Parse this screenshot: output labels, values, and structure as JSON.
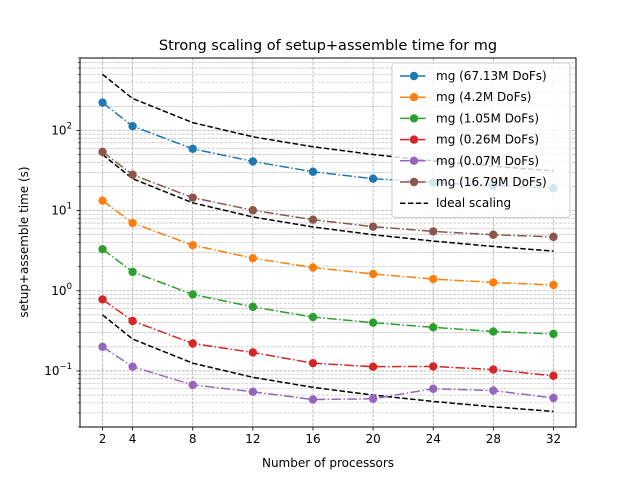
{
  "chart_data": {
    "type": "line",
    "title": "Strong scaling of setup+assemble time for mg",
    "xlabel": "Number of processors",
    "ylabel": "setup+assemble time (s)",
    "x": [
      2,
      4,
      8,
      12,
      16,
      20,
      24,
      28,
      32
    ],
    "x_ticks": [
      2,
      4,
      8,
      12,
      16,
      20,
      24,
      28,
      32
    ],
    "xlim": [
      0.5,
      33.5
    ],
    "y_scale": "log",
    "ylim": [
      0.02,
      800
    ],
    "y_major_ticks": [
      0.1,
      1,
      10,
      100
    ],
    "y_tick_labels": [
      {
        "base": "10",
        "exp": "−1"
      },
      {
        "base": "10",
        "exp": "0"
      },
      {
        "base": "10",
        "exp": "1"
      },
      {
        "base": "10",
        "exp": "2"
      }
    ],
    "grid": "both (major and minor)",
    "legend_position": "top-right",
    "series": [
      {
        "name": "mg (67.13M DoFs)",
        "color": "#1f77b4",
        "style": "dash-dot",
        "marker": "circle",
        "values": [
          222,
          113,
          59,
          41,
          30.5,
          25,
          22.5,
          20.5,
          19
        ]
      },
      {
        "name": "mg (4.2M DoFs)",
        "color": "#ff7f0e",
        "style": "dash-dot",
        "marker": "circle",
        "values": [
          13.3,
          7.0,
          3.7,
          2.55,
          1.95,
          1.62,
          1.4,
          1.27,
          1.18
        ]
      },
      {
        "name": "mg (1.05M DoFs)",
        "color": "#2ca02c",
        "style": "dash-dot",
        "marker": "circle",
        "values": [
          3.3,
          1.72,
          0.9,
          0.63,
          0.47,
          0.4,
          0.35,
          0.31,
          0.29
        ]
      },
      {
        "name": "mg (0.26M DoFs)",
        "color": "#d62728",
        "style": "dash-dot",
        "marker": "circle",
        "values": [
          0.78,
          0.42,
          0.22,
          0.17,
          0.125,
          0.113,
          0.114,
          0.104,
          0.087
        ]
      },
      {
        "name": "mg (0.07M DoFs)",
        "color": "#9467bd",
        "style": "dash-dot",
        "marker": "circle",
        "values": [
          0.2,
          0.113,
          0.067,
          0.055,
          0.044,
          0.045,
          0.06,
          0.057,
          0.046
        ]
      },
      {
        "name": "mg (16.79M DoFs)",
        "color": "#8c564b",
        "style": "dash-dot",
        "marker": "circle",
        "values": [
          54,
          28,
          14.5,
          10.1,
          7.7,
          6.3,
          5.5,
          5.0,
          4.7
        ]
      },
      {
        "name": "Ideal scaling",
        "color": "#000000",
        "style": "dashed",
        "marker": "none",
        "lines": [
          [
            500,
            250,
            125,
            83.3,
            62.5,
            50,
            41.7,
            35.7,
            31.25
          ],
          [
            50,
            25,
            12.5,
            8.33,
            6.25,
            5,
            4.17,
            3.57,
            3.125
          ],
          [
            0.5,
            0.25,
            0.125,
            0.0833,
            0.0625,
            0.05,
            0.0417,
            0.0357,
            0.03125
          ]
        ]
      }
    ]
  }
}
